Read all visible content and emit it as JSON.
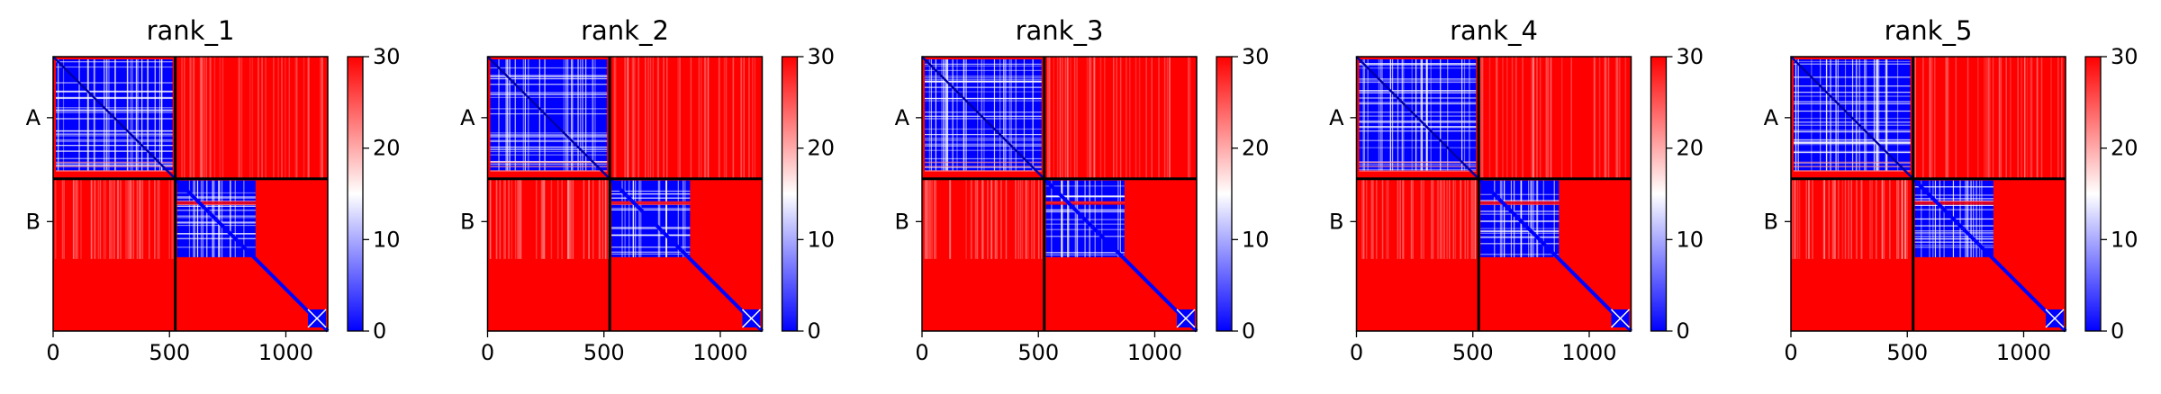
{
  "colors": {
    "low": "#0000ff",
    "mid": "#ffffff",
    "high": "#ff0000",
    "axis": "#000000",
    "chain_divider": "#000000"
  },
  "chart_data": [
    {
      "type": "heatmap",
      "title": "rank_1",
      "x_range": [
        0,
        1180
      ],
      "y_range": [
        0,
        1180
      ],
      "x_ticks": [
        0,
        500,
        1000
      ],
      "x_tick_labels": [
        "0",
        "500",
        "1000"
      ],
      "y_tick_labels": [
        "A",
        "B"
      ],
      "chain_boundary": 525,
      "chain_B_domain_end": 870,
      "colorbar": {
        "min": 0,
        "max": 30,
        "ticks": [
          0,
          10,
          20,
          30
        ],
        "tick_labels": [
          "0",
          "10",
          "20",
          "30"
        ]
      }
    },
    {
      "type": "heatmap",
      "title": "rank_2",
      "x_range": [
        0,
        1180
      ],
      "y_range": [
        0,
        1180
      ],
      "x_ticks": [
        0,
        500,
        1000
      ],
      "x_tick_labels": [
        "0",
        "500",
        "1000"
      ],
      "y_tick_labels": [
        "A",
        "B"
      ],
      "chain_boundary": 525,
      "chain_B_domain_end": 870,
      "colorbar": {
        "min": 0,
        "max": 30,
        "ticks": [
          0,
          10,
          20,
          30
        ],
        "tick_labels": [
          "0",
          "10",
          "20",
          "30"
        ]
      }
    },
    {
      "type": "heatmap",
      "title": "rank_3",
      "x_range": [
        0,
        1180
      ],
      "y_range": [
        0,
        1180
      ],
      "x_ticks": [
        0,
        500,
        1000
      ],
      "x_tick_labels": [
        "0",
        "500",
        "1000"
      ],
      "y_tick_labels": [
        "A",
        "B"
      ],
      "chain_boundary": 525,
      "chain_B_domain_end": 870,
      "colorbar": {
        "min": 0,
        "max": 30,
        "ticks": [
          0,
          10,
          20,
          30
        ],
        "tick_labels": [
          "0",
          "10",
          "20",
          "30"
        ]
      }
    },
    {
      "type": "heatmap",
      "title": "rank_4",
      "x_range": [
        0,
        1180
      ],
      "y_range": [
        0,
        1180
      ],
      "x_ticks": [
        0,
        500,
        1000
      ],
      "x_tick_labels": [
        "0",
        "500",
        "1000"
      ],
      "y_tick_labels": [
        "A",
        "B"
      ],
      "chain_boundary": 525,
      "chain_B_domain_end": 870,
      "colorbar": {
        "min": 0,
        "max": 30,
        "ticks": [
          0,
          10,
          20,
          30
        ],
        "tick_labels": [
          "0",
          "10",
          "20",
          "30"
        ]
      }
    },
    {
      "type": "heatmap",
      "title": "rank_5",
      "x_range": [
        0,
        1180
      ],
      "y_range": [
        0,
        1180
      ],
      "x_ticks": [
        0,
        500,
        1000
      ],
      "x_tick_labels": [
        "0",
        "500",
        "1000"
      ],
      "y_tick_labels": [
        "A",
        "B"
      ],
      "chain_boundary": 525,
      "chain_B_domain_end": 870,
      "colorbar": {
        "min": 0,
        "max": 30,
        "ticks": [
          0,
          10,
          20,
          30
        ],
        "tick_labels": [
          "0",
          "10",
          "20",
          "30"
        ]
      }
    }
  ]
}
